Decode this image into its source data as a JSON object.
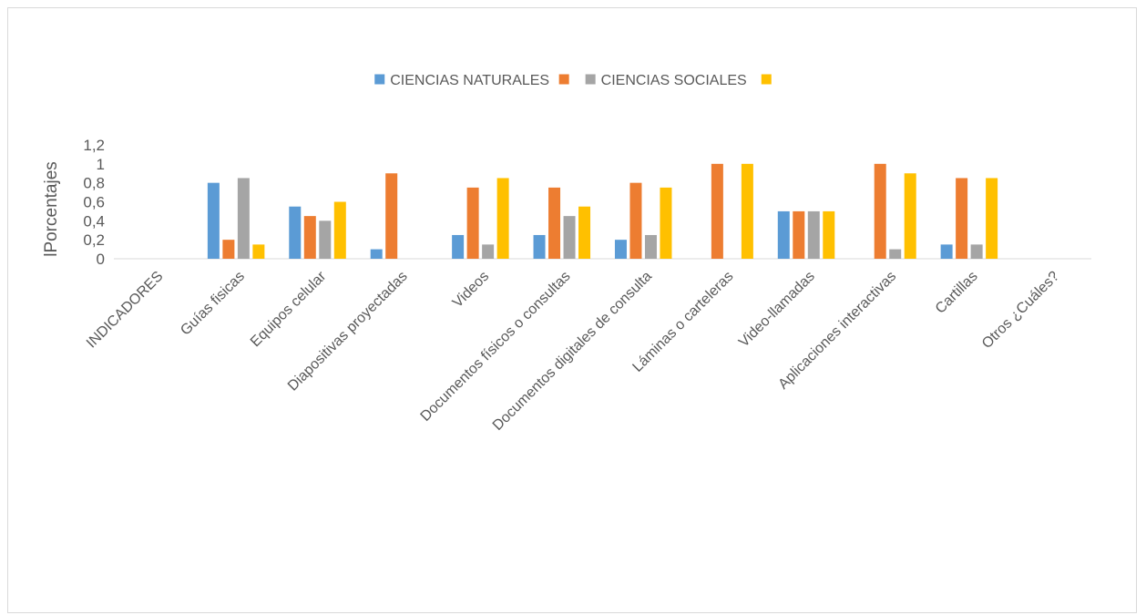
{
  "chart_data": {
    "type": "bar",
    "title": "",
    "xlabel": "",
    "ylabel": "lPorcentajes",
    "ylim": [
      0,
      1.2
    ],
    "yticks": [
      "0",
      "0,2",
      "0,4",
      "0,6",
      "0,8",
      "1",
      "1,2"
    ],
    "grid": false,
    "legend_position": "top",
    "categories": [
      "INDICADORES",
      "Guías fisicas",
      "Equipos celular",
      "Diapositivas proyectadas",
      "Videos",
      "Documentos físicos o consultas",
      "Documentos digitales de consulta",
      "Láminas o carteleras",
      "Video-llamadas",
      "Aplicaciones interactivas",
      "Cartillas",
      "Otros ¿Cuáles?"
    ],
    "series": [
      {
        "name": "CIENCIAS NATURALES",
        "color": "#5B9BD5",
        "values": [
          null,
          0.8,
          0.55,
          0.1,
          0.25,
          0.25,
          0.2,
          0,
          0.5,
          0,
          0.15,
          null
        ]
      },
      {
        "name": "",
        "color": "#ED7D31",
        "values": [
          null,
          0.2,
          0.45,
          0.9,
          0.75,
          0.75,
          0.8,
          1.0,
          0.5,
          1.0,
          0.85,
          null
        ]
      },
      {
        "name": "CIENCIAS SOCIALES",
        "color": "#A5A5A5",
        "values": [
          null,
          0.85,
          0.4,
          0,
          0.15,
          0.45,
          0.25,
          0,
          0.5,
          0.1,
          0.15,
          null
        ]
      },
      {
        "name": "",
        "color": "#FFC000",
        "values": [
          null,
          0.15,
          0.6,
          0,
          0.85,
          0.55,
          0.75,
          1.0,
          0.5,
          0.9,
          0.85,
          null
        ]
      }
    ]
  }
}
